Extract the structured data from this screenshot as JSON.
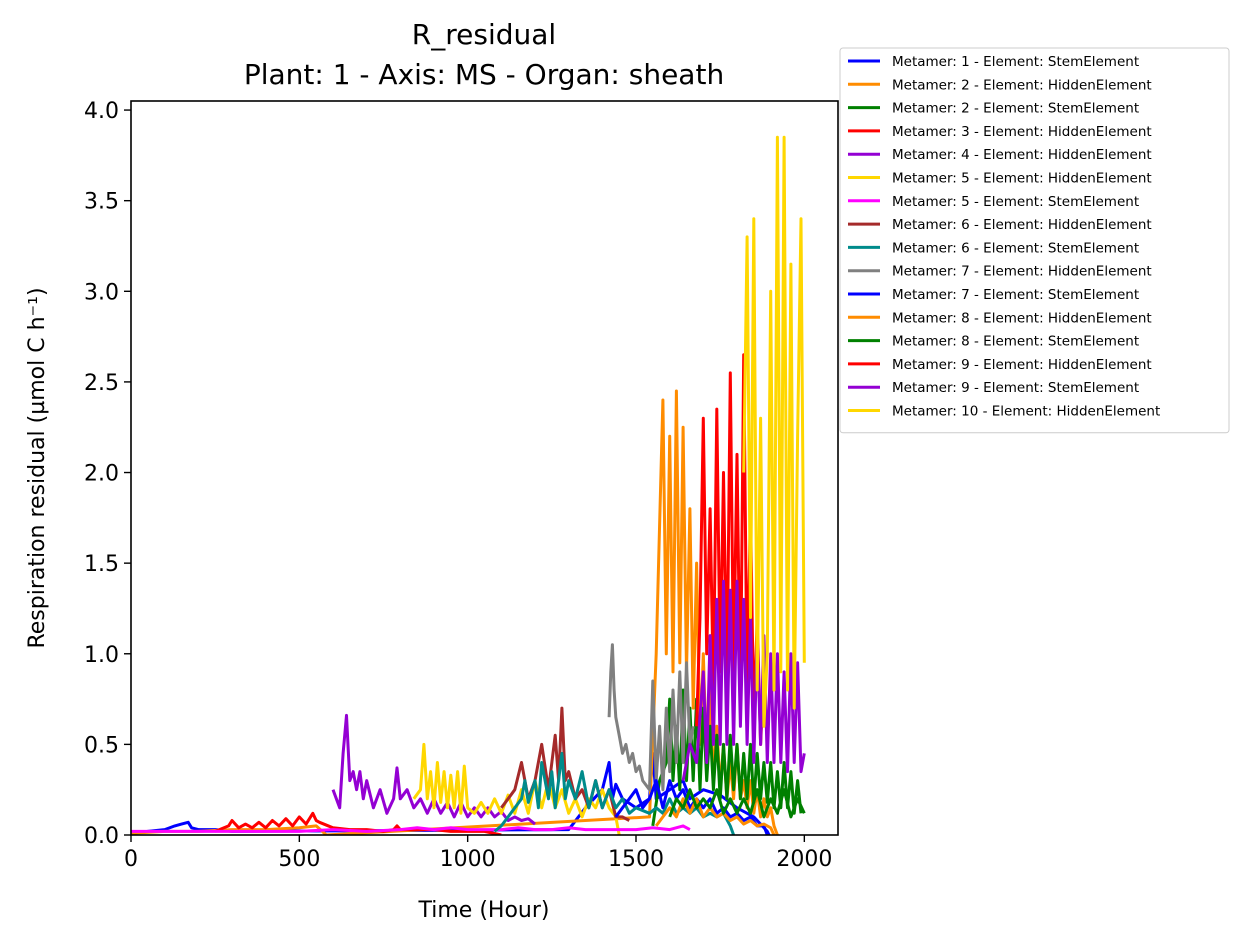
{
  "chart_data": {
    "type": "line",
    "title": "R_residual",
    "subtitle": "Plant: 1 - Axis: MS - Organ: sheath",
    "xlabel": "Time (Hour)",
    "ylabel": "Respiration residual (µmol C h⁻¹)",
    "xlim": [
      0,
      2100
    ],
    "ylim": [
      0,
      4.05
    ],
    "xticks": [
      0,
      500,
      1000,
      1500,
      2000
    ],
    "xtick_labels": [
      "0",
      "500",
      "1000",
      "1500",
      "2000"
    ],
    "yticks": [
      0,
      0.5,
      1,
      1.5,
      2,
      2.5,
      3,
      3.5,
      4
    ],
    "ytick_labels": [
      "0.0",
      "0.5",
      "1.0",
      "1.5",
      "2.0",
      "2.5",
      "3.0",
      "3.5",
      "4.0"
    ],
    "grid": false,
    "legend_position": "outside-top-right",
    "series": [
      {
        "name": "Metamer: 1 - Element: StemElement",
        "color": "#0000ff",
        "x": [
          0,
          50,
          100,
          130,
          150,
          170,
          180,
          200,
          250,
          300,
          1300,
          1350,
          1400,
          1420,
          1430,
          1440,
          1460,
          1500,
          1540,
          1550,
          1560,
          1600,
          1640,
          1660,
          1700,
          1750,
          1800,
          1850,
          1870,
          1890,
          1895
        ],
        "y": [
          0.01,
          0.02,
          0.03,
          0.05,
          0.06,
          0.07,
          0.04,
          0.03,
          0.03,
          0.02,
          0.03,
          0.15,
          0.25,
          0.4,
          0.2,
          0.28,
          0.2,
          0.15,
          0.2,
          0.45,
          0.2,
          0.25,
          0.3,
          0.2,
          0.25,
          0.22,
          0.15,
          0.1,
          0.06,
          0.02,
          0.0
        ]
      },
      {
        "name": "Metamer: 2 - Element: HiddenElement",
        "color": "#ff8c00",
        "x": [
          0,
          100,
          200,
          300,
          400,
          500,
          550,
          580,
          1540,
          1560,
          1580,
          1590,
          1600,
          1610,
          1620,
          1630,
          1640,
          1650,
          1660,
          1670,
          1680,
          1690,
          1700,
          1710,
          1720,
          1730,
          1740,
          1750,
          1760,
          1770,
          1780,
          1790,
          1800,
          1810,
          1820,
          1830,
          1840,
          1850,
          1860,
          1870,
          1880,
          1890,
          1900,
          1910,
          1920
        ],
        "y": [
          0.01,
          0.02,
          0.02,
          0.03,
          0.03,
          0.04,
          0.05,
          0.0,
          0.1,
          1.0,
          2.4,
          1.0,
          2.2,
          0.9,
          2.45,
          0.95,
          2.25,
          0.9,
          1.8,
          0.7,
          1.5,
          0.5,
          1.0,
          0.4,
          0.8,
          0.3,
          0.6,
          0.25,
          0.5,
          0.2,
          0.4,
          0.2,
          0.5,
          0.2,
          0.3,
          0.15,
          0.3,
          0.12,
          0.25,
          0.1,
          0.2,
          0.1,
          0.15,
          0.05,
          0.0
        ]
      },
      {
        "name": "Metamer: 2 - Element: StemElement",
        "color": "#008000",
        "x": [
          1550,
          1570,
          1590,
          1600,
          1610,
          1620,
          1630,
          1640,
          1650,
          1660,
          1670,
          1680,
          1690,
          1700,
          1710,
          1720,
          1730,
          1740,
          1750,
          1760,
          1770,
          1780,
          1790,
          1800,
          1810,
          1820,
          1830,
          1840,
          1850,
          1860,
          1870,
          1880,
          1890,
          1900,
          1910,
          1920,
          1930,
          1940,
          1950,
          1960,
          1970,
          1980,
          1990
        ],
        "y": [
          0.05,
          0.3,
          0.4,
          0.75,
          0.3,
          0.6,
          0.25,
          0.8,
          0.3,
          0.7,
          0.3,
          0.75,
          0.25,
          0.7,
          0.3,
          0.6,
          0.25,
          0.55,
          0.2,
          0.5,
          0.2,
          0.55,
          0.25,
          0.5,
          0.2,
          0.45,
          0.2,
          0.5,
          0.18,
          0.45,
          0.2,
          0.4,
          0.18,
          0.4,
          0.15,
          0.35,
          0.15,
          0.4,
          0.15,
          0.35,
          0.12,
          0.3,
          0.12
        ]
      },
      {
        "name": "Metamer: 3 - Element: HiddenElement",
        "color": "#ff0000",
        "x": [
          250,
          290,
          300,
          320,
          340,
          360,
          380,
          400,
          420,
          440,
          460,
          480,
          500,
          520,
          540,
          550,
          560,
          600,
          650,
          700,
          750,
          780,
          790,
          800,
          850,
          900,
          950,
          1000,
          1050,
          1100
        ],
        "y": [
          0.02,
          0.05,
          0.08,
          0.04,
          0.06,
          0.04,
          0.07,
          0.04,
          0.08,
          0.05,
          0.09,
          0.05,
          0.1,
          0.06,
          0.12,
          0.08,
          0.07,
          0.04,
          0.03,
          0.03,
          0.02,
          0.03,
          0.05,
          0.03,
          0.03,
          0.03,
          0.02,
          0.02,
          0.02,
          0.0
        ]
      },
      {
        "name": "Metamer: 4 - Element: HiddenElement",
        "color": "#9400d3",
        "x": [
          600,
          620,
          630,
          640,
          650,
          660,
          670,
          680,
          690,
          700,
          720,
          740,
          760,
          780,
          790,
          800,
          820,
          840,
          860,
          880,
          900,
          920,
          940,
          960,
          980,
          1000,
          1020,
          1040,
          1060,
          1080,
          1100,
          1120,
          1140,
          1160,
          1180,
          1200
        ],
        "y": [
          0.25,
          0.15,
          0.45,
          0.66,
          0.3,
          0.35,
          0.25,
          0.35,
          0.2,
          0.3,
          0.15,
          0.25,
          0.12,
          0.2,
          0.37,
          0.2,
          0.25,
          0.15,
          0.2,
          0.12,
          0.2,
          0.12,
          0.18,
          0.1,
          0.18,
          0.1,
          0.15,
          0.1,
          0.15,
          0.1,
          0.13,
          0.08,
          0.1,
          0.08,
          0.09,
          0.06
        ]
      },
      {
        "name": "Metamer: 5 - Element: HiddenElement",
        "color": "#ffd700",
        "x": [
          840,
          860,
          870,
          880,
          890,
          900,
          910,
          920,
          930,
          940,
          950,
          960,
          970,
          980,
          990,
          1000,
          1020,
          1040,
          1060,
          1080,
          1100,
          1120,
          1140,
          1160,
          1180,
          1200,
          1220,
          1240,
          1260,
          1280,
          1300,
          1320,
          1340,
          1360,
          1380,
          1400,
          1420,
          1440,
          1450
        ],
        "y": [
          0.2,
          0.25,
          0.5,
          0.2,
          0.35,
          0.15,
          0.4,
          0.18,
          0.35,
          0.15,
          0.33,
          0.15,
          0.35,
          0.12,
          0.38,
          0.15,
          0.12,
          0.18,
          0.12,
          0.2,
          0.12,
          0.22,
          0.12,
          0.25,
          0.12,
          0.3,
          0.15,
          0.3,
          0.15,
          0.25,
          0.12,
          0.2,
          0.1,
          0.2,
          0.15,
          0.25,
          0.15,
          0.1,
          0.0
        ]
      },
      {
        "name": "Metamer: 5 - Element: StemElement",
        "color": "#ff00ff",
        "x": [
          0,
          100,
          200,
          300,
          400,
          500,
          600,
          700,
          800,
          850,
          900,
          950,
          1000,
          1050,
          1100,
          1150,
          1200,
          1250,
          1300,
          1350,
          1400,
          1450,
          1500,
          1550,
          1600,
          1640,
          1660
        ],
        "y": [
          0.02,
          0.02,
          0.02,
          0.02,
          0.02,
          0.02,
          0.03,
          0.02,
          0.03,
          0.04,
          0.03,
          0.04,
          0.03,
          0.03,
          0.03,
          0.04,
          0.03,
          0.03,
          0.04,
          0.03,
          0.03,
          0.03,
          0.03,
          0.04,
          0.03,
          0.05,
          0.03
        ]
      },
      {
        "name": "Metamer: 6 - Element: HiddenElement",
        "color": "#a52a2a",
        "x": [
          1100,
          1120,
          1140,
          1160,
          1180,
          1200,
          1220,
          1240,
          1260,
          1270,
          1280,
          1290,
          1300,
          1320,
          1340,
          1360,
          1380,
          1400,
          1420,
          1440,
          1460,
          1480
        ],
        "y": [
          0.15,
          0.2,
          0.25,
          0.4,
          0.2,
          0.3,
          0.5,
          0.25,
          0.55,
          0.3,
          0.7,
          0.3,
          0.35,
          0.2,
          0.25,
          0.15,
          0.3,
          0.15,
          0.25,
          0.1,
          0.1,
          0.08
        ]
      },
      {
        "name": "Metamer: 6 - Element: StemElement",
        "color": "#008b8b",
        "x": [
          1080,
          1100,
          1120,
          1140,
          1160,
          1170,
          1180,
          1200,
          1210,
          1220,
          1240,
          1250,
          1260,
          1280,
          1290,
          1300,
          1320,
          1340,
          1360,
          1380,
          1400,
          1420,
          1440,
          1460,
          1480,
          1500,
          1540,
          1560,
          1580,
          1600,
          1620,
          1640,
          1660,
          1680,
          1700,
          1720,
          1740,
          1760,
          1780,
          1790
        ],
        "y": [
          0.02,
          0.05,
          0.1,
          0.15,
          0.2,
          0.3,
          0.18,
          0.3,
          0.15,
          0.4,
          0.2,
          0.35,
          0.15,
          0.45,
          0.2,
          0.3,
          0.2,
          0.35,
          0.15,
          0.3,
          0.15,
          0.25,
          0.15,
          0.2,
          0.12,
          0.15,
          0.12,
          0.15,
          0.12,
          0.2,
          0.12,
          0.15,
          0.12,
          0.15,
          0.1,
          0.12,
          0.1,
          0.12,
          0.05,
          0.0
        ]
      },
      {
        "name": "Metamer: 7 - Element: HiddenElement",
        "color": "#808080",
        "x": [
          1420,
          1425,
          1430,
          1435,
          1440,
          1450,
          1460,
          1470,
          1480,
          1490,
          1500,
          1510,
          1520,
          1540,
          1550,
          1560,
          1570,
          1580,
          1590,
          1600,
          1610,
          1620,
          1630,
          1640,
          1650,
          1660,
          1670
        ],
        "y": [
          0.65,
          0.9,
          1.05,
          0.8,
          0.65,
          0.55,
          0.45,
          0.5,
          0.4,
          0.45,
          0.35,
          0.38,
          0.3,
          0.25,
          0.85,
          0.3,
          0.6,
          0.25,
          0.7,
          0.35,
          0.8,
          0.4,
          0.9,
          0.4,
          0.95,
          0.5,
          0.6
        ]
      },
      {
        "name": "Metamer: 7 - Element: StemElement",
        "color": "#0000ff",
        "x": [
          1440,
          1460,
          1480,
          1500,
          1520,
          1540,
          1560,
          1580,
          1600,
          1620,
          1640,
          1660,
          1680,
          1700,
          1720,
          1740,
          1760,
          1780,
          1800,
          1820,
          1840,
          1860,
          1880,
          1890
        ],
        "y": [
          0.1,
          0.15,
          0.2,
          0.25,
          0.15,
          0.2,
          0.3,
          0.15,
          0.3,
          0.2,
          0.25,
          0.15,
          0.2,
          0.15,
          0.2,
          0.12,
          0.15,
          0.1,
          0.12,
          0.08,
          0.1,
          0.05,
          0.05,
          0.0
        ]
      },
      {
        "name": "Metamer: 8 - Element: HiddenElement",
        "color": "#ff8c00",
        "x": [
          1560,
          1580,
          1600,
          1620,
          1640,
          1660,
          1680,
          1700,
          1720,
          1740,
          1760,
          1780,
          1800,
          1820,
          1840,
          1860,
          1880,
          1900,
          1910
        ],
        "y": [
          0.05,
          0.1,
          0.15,
          0.1,
          0.2,
          0.12,
          0.2,
          0.1,
          0.15,
          0.1,
          0.12,
          0.08,
          0.1,
          0.06,
          0.08,
          0.05,
          0.06,
          0.04,
          0.0
        ]
      },
      {
        "name": "Metamer: 8 - Element: StemElement",
        "color": "#008000",
        "x": [
          1600,
          1620,
          1640,
          1660,
          1680,
          1700,
          1720,
          1740,
          1760,
          1780,
          1800,
          1820,
          1840,
          1860,
          1880,
          1900,
          1920,
          1940,
          1960,
          1980,
          2000
        ],
        "y": [
          0.1,
          0.2,
          0.15,
          0.25,
          0.15,
          0.2,
          0.15,
          0.25,
          0.12,
          0.2,
          0.12,
          0.2,
          0.12,
          0.25,
          0.1,
          0.2,
          0.12,
          0.25,
          0.1,
          0.2,
          0.12
        ]
      },
      {
        "name": "Metamer: 9 - Element: HiddenElement",
        "color": "#ff0000",
        "x": [
          1680,
          1690,
          1700,
          1710,
          1720,
          1730,
          1740,
          1750,
          1760,
          1770,
          1780,
          1790,
          1800,
          1810,
          1820,
          1830,
          1840,
          1850,
          1860,
          1870,
          1880
        ],
        "y": [
          0.6,
          1.2,
          2.3,
          1.0,
          1.8,
          0.8,
          2.35,
          0.9,
          2.0,
          0.8,
          2.55,
          0.9,
          2.1,
          0.7,
          2.65,
          0.8,
          1.8,
          0.6,
          1.2,
          0.5,
          0.9
        ]
      },
      {
        "name": "Metamer: 9 - Element: StemElement",
        "color": "#9400d3",
        "x": [
          1640,
          1660,
          1680,
          1700,
          1710,
          1720,
          1730,
          1740,
          1750,
          1760,
          1770,
          1780,
          1790,
          1800,
          1810,
          1820,
          1830,
          1840,
          1850,
          1860,
          1870,
          1880,
          1890,
          1900,
          1910,
          1920,
          1930,
          1940,
          1950,
          1960,
          1970,
          1980,
          1990,
          2000
        ],
        "y": [
          0.3,
          0.5,
          0.4,
          0.9,
          0.4,
          1.1,
          0.5,
          1.3,
          0.5,
          1.4,
          0.5,
          1.35,
          0.5,
          1.4,
          0.6,
          1.3,
          0.5,
          1.2,
          0.4,
          1.1,
          0.5,
          1.1,
          0.4,
          1.0,
          0.4,
          1.0,
          0.4,
          0.9,
          0.35,
          1.0,
          0.4,
          0.95,
          0.35,
          0.45
        ]
      },
      {
        "name": "Metamer: 10 - Element: HiddenElement",
        "color": "#ffd700",
        "x": [
          1820,
          1830,
          1840,
          1850,
          1860,
          1870,
          1880,
          1890,
          1900,
          1910,
          1920,
          1930,
          1940,
          1950,
          1960,
          1970,
          1980,
          1990,
          2000
        ],
        "y": [
          2.0,
          3.3,
          1.2,
          3.4,
          0.8,
          2.3,
          0.6,
          1.0,
          3.0,
          0.8,
          3.85,
          0.9,
          3.85,
          0.8,
          3.15,
          0.7,
          2.2,
          3.4,
          0.95
        ]
      }
    ]
  }
}
